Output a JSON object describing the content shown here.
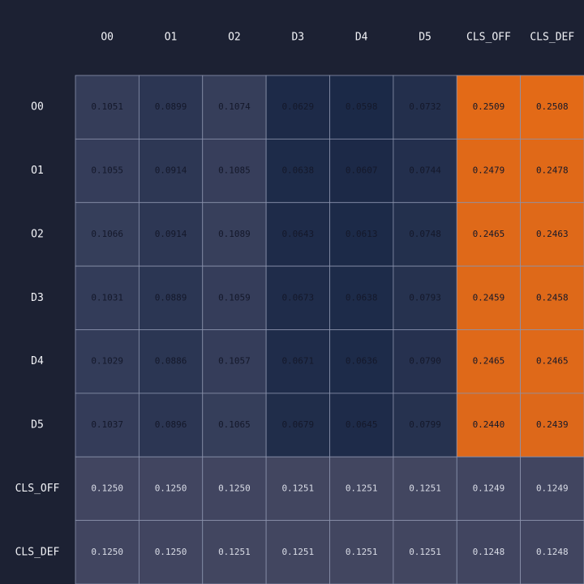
{
  "chart_data": {
    "type": "heatmap",
    "x_categories": [
      "O0",
      "O1",
      "O2",
      "D3",
      "D4",
      "D5",
      "CLS_OFF",
      "CLS_DEF"
    ],
    "y_categories": [
      "O0",
      "O1",
      "O2",
      "D3",
      "D4",
      "D5",
      "CLS_OFF",
      "CLS_DEF"
    ],
    "values": [
      [
        0.1051,
        0.0899,
        0.1074,
        0.0629,
        0.0598,
        0.0732,
        0.2509,
        0.2508
      ],
      [
        0.1055,
        0.0914,
        0.1085,
        0.0638,
        0.0607,
        0.0744,
        0.2479,
        0.2478
      ],
      [
        0.1066,
        0.0914,
        0.1089,
        0.0643,
        0.0613,
        0.0748,
        0.2465,
        0.2463
      ],
      [
        0.1031,
        0.0889,
        0.1059,
        0.0673,
        0.0638,
        0.0793,
        0.2459,
        0.2458
      ],
      [
        0.1029,
        0.0886,
        0.1057,
        0.0671,
        0.0636,
        0.079,
        0.2465,
        0.2465
      ],
      [
        0.1037,
        0.0896,
        0.1065,
        0.0679,
        0.0645,
        0.0799,
        0.244,
        0.2439
      ],
      [
        0.125,
        0.125,
        0.125,
        0.1251,
        0.1251,
        0.1251,
        0.1249,
        0.1249
      ],
      [
        0.125,
        0.125,
        0.1251,
        0.1251,
        0.1251,
        0.1251,
        0.1248,
        0.1248
      ]
    ],
    "value_labels": [
      [
        "0.1051",
        "0.0899",
        "0.1074",
        "0.0629",
        "0.0598",
        "0.0732",
        "0.2509",
        "0.2508"
      ],
      [
        "0.1055",
        "0.0914",
        "0.1085",
        "0.0638",
        "0.0607",
        "0.0744",
        "0.2479",
        "0.2478"
      ],
      [
        "0.1066",
        "0.0914",
        "0.1089",
        "0.0643",
        "0.0613",
        "0.0748",
        "0.2465",
        "0.2463"
      ],
      [
        "0.1031",
        "0.0889",
        "0.1059",
        "0.0673",
        "0.0638",
        "0.0793",
        "0.2459",
        "0.2458"
      ],
      [
        "0.1029",
        "0.0886",
        "0.1057",
        "0.0671",
        "0.0636",
        "0.0790",
        "0.2465",
        "0.2465"
      ],
      [
        "0.1037",
        "0.0896",
        "0.1065",
        "0.0679",
        "0.0645",
        "0.0799",
        "0.2440",
        "0.2439"
      ],
      [
        "0.1250",
        "0.1250",
        "0.1250",
        "0.1251",
        "0.1251",
        "0.1251",
        "0.1249",
        "0.1249"
      ],
      [
        "0.1250",
        "0.1250",
        "0.1251",
        "0.1251",
        "0.1251",
        "0.1251",
        "0.1248",
        "0.1248"
      ]
    ],
    "colorscale": [
      "#1b2947",
      "#3f4561",
      "#a85a34",
      "#e36a17"
    ]
  }
}
